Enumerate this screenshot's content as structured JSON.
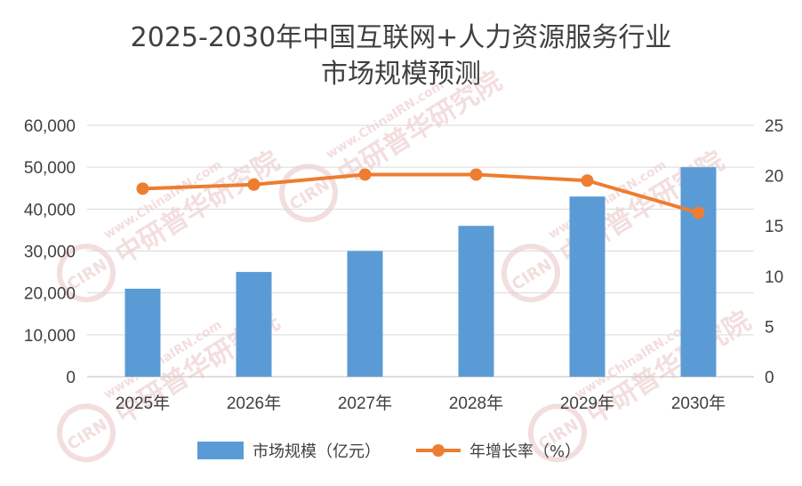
{
  "chart_data": {
    "type": "bar",
    "title_lines": [
      "2025-2030年中国互联网+人力资源服务行业",
      "市场规模预测"
    ],
    "categories": [
      "2025年",
      "2026年",
      "2027年",
      "2028年",
      "2029年",
      "2030年"
    ],
    "series": [
      {
        "name": "市场规模（亿元）",
        "type": "bar",
        "axis": "left",
        "color": "#5b9bd5",
        "values": [
          21000,
          25000,
          30000,
          36000,
          43000,
          50000
        ]
      },
      {
        "name": "年增长率（%）",
        "type": "line",
        "axis": "right",
        "color": "#ed7d31",
        "values": [
          18.7,
          19.1,
          20.1,
          20.1,
          19.5,
          16.3
        ]
      }
    ],
    "y_left": {
      "min": 0,
      "max": 60000,
      "step": 10000,
      "tick_labels": [
        "0",
        "10,000",
        "20,000",
        "30,000",
        "40,000",
        "50,000",
        "60,000"
      ]
    },
    "y_right": {
      "min": 0,
      "max": 25,
      "step": 5,
      "tick_labels": [
        "0",
        "5",
        "10",
        "15",
        "20",
        "25"
      ]
    },
    "grid": true,
    "legend_position": "bottom"
  },
  "watermark": {
    "brand": "CIRN",
    "text": "中研普华研究院",
    "url": "www.ChinaIRN.com"
  }
}
